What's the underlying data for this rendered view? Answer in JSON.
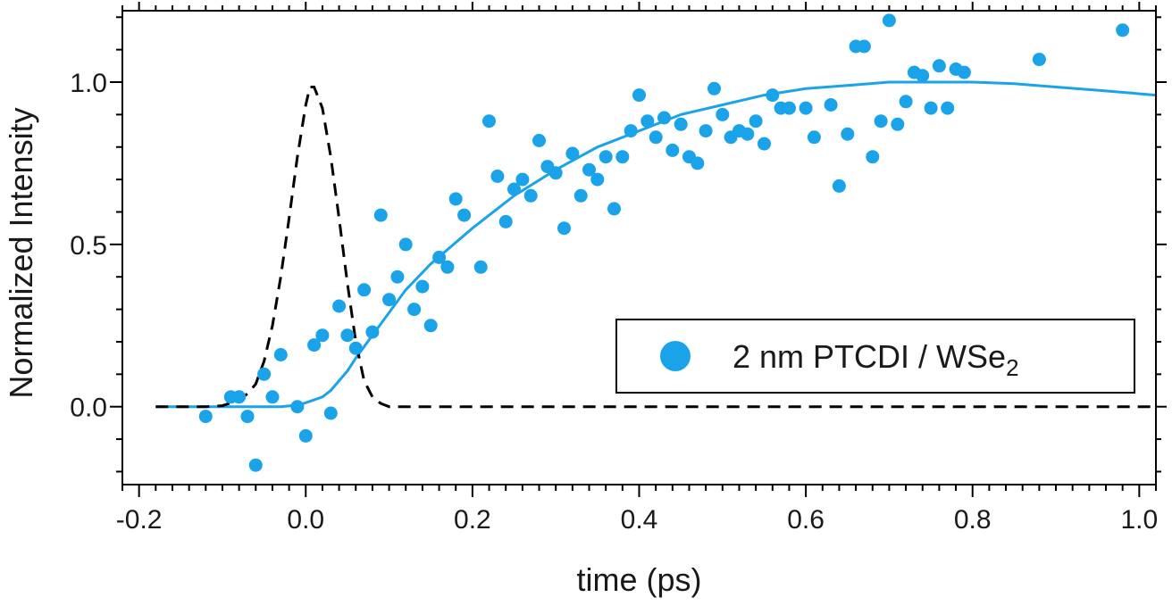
{
  "chart_data": {
    "type": "scatter",
    "xlabel": "time (ps)",
    "ylabel": "Normalized Intensity",
    "xlim": [
      -0.22,
      1.02
    ],
    "ylim": [
      -0.24,
      1.22
    ],
    "x_ticks": [
      -0.2,
      0.0,
      0.2,
      0.4,
      0.6,
      0.8,
      1.0
    ],
    "x_tick_labels": [
      "-0.2",
      "0.0",
      "0.2",
      "0.4",
      "0.6",
      "0.8",
      "1.0"
    ],
    "y_ticks": [
      0.0,
      0.5,
      1.0
    ],
    "y_tick_labels": [
      "0.0",
      "0.5",
      "1.0"
    ],
    "legend": {
      "placement": "lower-right",
      "entries": [
        {
          "label_main": "2 nm PTCDI / WSe",
          "label_sub": "2",
          "color": "#1aa3e8",
          "marker": "circle"
        }
      ]
    },
    "series": [
      {
        "name": "2 nm PTCDI / WSe2",
        "kind": "scatter",
        "color": "#1aa3e8",
        "points": [
          [
            -0.12,
            -0.03
          ],
          [
            -0.09,
            0.03
          ],
          [
            -0.08,
            0.03
          ],
          [
            -0.07,
            -0.03
          ],
          [
            -0.06,
            -0.18
          ],
          [
            -0.05,
            0.1
          ],
          [
            -0.04,
            0.03
          ],
          [
            -0.03,
            0.16
          ],
          [
            -0.01,
            0.0
          ],
          [
            0.0,
            -0.09
          ],
          [
            0.01,
            0.19
          ],
          [
            0.02,
            0.22
          ],
          [
            0.03,
            -0.02
          ],
          [
            0.04,
            0.31
          ],
          [
            0.05,
            0.22
          ],
          [
            0.06,
            0.18
          ],
          [
            0.07,
            0.36
          ],
          [
            0.08,
            0.23
          ],
          [
            0.09,
            0.59
          ],
          [
            0.1,
            0.33
          ],
          [
            0.11,
            0.4
          ],
          [
            0.12,
            0.5
          ],
          [
            0.13,
            0.3
          ],
          [
            0.14,
            0.37
          ],
          [
            0.15,
            0.25
          ],
          [
            0.16,
            0.46
          ],
          [
            0.17,
            0.43
          ],
          [
            0.18,
            0.64
          ],
          [
            0.19,
            0.59
          ],
          [
            0.21,
            0.43
          ],
          [
            0.22,
            0.88
          ],
          [
            0.23,
            0.71
          ],
          [
            0.24,
            0.57
          ],
          [
            0.25,
            0.67
          ],
          [
            0.26,
            0.7
          ],
          [
            0.27,
            0.65
          ],
          [
            0.28,
            0.82
          ],
          [
            0.29,
            0.74
          ],
          [
            0.3,
            0.72
          ],
          [
            0.31,
            0.55
          ],
          [
            0.32,
            0.78
          ],
          [
            0.33,
            0.65
          ],
          [
            0.34,
            0.73
          ],
          [
            0.35,
            0.7
          ],
          [
            0.36,
            0.77
          ],
          [
            0.37,
            0.61
          ],
          [
            0.38,
            0.77
          ],
          [
            0.39,
            0.85
          ],
          [
            0.4,
            0.96
          ],
          [
            0.41,
            0.88
          ],
          [
            0.42,
            0.83
          ],
          [
            0.43,
            0.89
          ],
          [
            0.44,
            0.79
          ],
          [
            0.45,
            0.87
          ],
          [
            0.46,
            0.77
          ],
          [
            0.47,
            0.75
          ],
          [
            0.48,
            0.85
          ],
          [
            0.49,
            0.98
          ],
          [
            0.5,
            0.9
          ],
          [
            0.51,
            0.83
          ],
          [
            0.52,
            0.85
          ],
          [
            0.53,
            0.84
          ],
          [
            0.54,
            0.88
          ],
          [
            0.55,
            0.81
          ],
          [
            0.56,
            0.96
          ],
          [
            0.57,
            0.92
          ],
          [
            0.58,
            0.92
          ],
          [
            0.6,
            0.92
          ],
          [
            0.61,
            0.83
          ],
          [
            0.63,
            0.93
          ],
          [
            0.64,
            0.68
          ],
          [
            0.65,
            0.84
          ],
          [
            0.66,
            1.11
          ],
          [
            0.67,
            1.11
          ],
          [
            0.68,
            0.77
          ],
          [
            0.69,
            0.88
          ],
          [
            0.7,
            1.19
          ],
          [
            0.71,
            0.87
          ],
          [
            0.72,
            0.94
          ],
          [
            0.73,
            1.03
          ],
          [
            0.74,
            1.02
          ],
          [
            0.75,
            0.92
          ],
          [
            0.76,
            1.05
          ],
          [
            0.77,
            0.92
          ],
          [
            0.78,
            1.04
          ],
          [
            0.79,
            1.03
          ],
          [
            0.88,
            1.07
          ],
          [
            0.98,
            1.16
          ]
        ]
      },
      {
        "kind": "line",
        "style": "solid",
        "color": "#1aa3e8",
        "points": [
          [
            -0.18,
            0.0
          ],
          [
            -0.1,
            0.0
          ],
          [
            -0.06,
            0.0
          ],
          [
            -0.03,
            0.0
          ],
          [
            -0.01,
            0.005
          ],
          [
            0.0,
            0.012
          ],
          [
            0.02,
            0.03
          ],
          [
            0.03,
            0.05
          ],
          [
            0.04,
            0.08
          ],
          [
            0.05,
            0.11
          ],
          [
            0.06,
            0.15
          ],
          [
            0.08,
            0.22
          ],
          [
            0.1,
            0.29
          ],
          [
            0.12,
            0.36
          ],
          [
            0.15,
            0.44
          ],
          [
            0.2,
            0.55
          ],
          [
            0.25,
            0.65
          ],
          [
            0.3,
            0.73
          ],
          [
            0.35,
            0.8
          ],
          [
            0.4,
            0.85
          ],
          [
            0.45,
            0.9
          ],
          [
            0.5,
            0.93
          ],
          [
            0.55,
            0.96
          ],
          [
            0.6,
            0.98
          ],
          [
            0.65,
            0.99
          ],
          [
            0.7,
            1.0
          ],
          [
            0.75,
            1.0
          ],
          [
            0.8,
            1.0
          ],
          [
            0.85,
            0.995
          ],
          [
            0.9,
            0.985
          ],
          [
            0.95,
            0.975
          ],
          [
            1.02,
            0.96
          ]
        ]
      },
      {
        "kind": "line",
        "style": "dashed",
        "color": "#000000",
        "points": [
          [
            -0.18,
            0.0
          ],
          [
            -0.12,
            0.0
          ],
          [
            -0.1,
            0.003
          ],
          [
            -0.08,
            0.02
          ],
          [
            -0.07,
            0.04
          ],
          [
            -0.06,
            0.07
          ],
          [
            -0.05,
            0.14
          ],
          [
            -0.04,
            0.25
          ],
          [
            -0.03,
            0.4
          ],
          [
            -0.02,
            0.58
          ],
          [
            -0.01,
            0.77
          ],
          [
            0.0,
            0.93
          ],
          [
            0.005,
            0.985
          ],
          [
            0.01,
            0.985
          ],
          [
            0.02,
            0.92
          ],
          [
            0.03,
            0.77
          ],
          [
            0.04,
            0.58
          ],
          [
            0.05,
            0.38
          ],
          [
            0.06,
            0.2
          ],
          [
            0.07,
            0.08
          ],
          [
            0.08,
            0.03
          ],
          [
            0.09,
            0.01
          ],
          [
            0.1,
            0.0
          ],
          [
            0.2,
            0.0
          ],
          [
            1.02,
            0.0
          ]
        ]
      }
    ]
  }
}
